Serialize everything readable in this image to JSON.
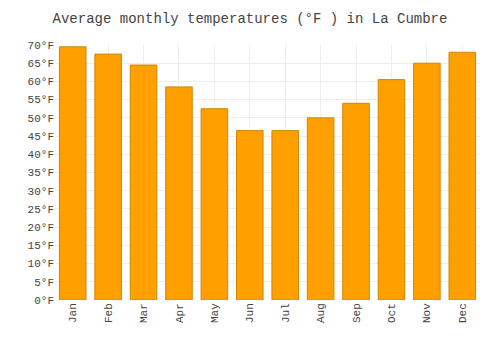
{
  "chart_data": {
    "type": "bar",
    "title": "Average monthly temperatures (°F ) in La Cumbre",
    "categories": [
      "Jan",
      "Feb",
      "Mar",
      "Apr",
      "May",
      "Jun",
      "Jul",
      "Aug",
      "Sep",
      "Oct",
      "Nov",
      "Dec"
    ],
    "values": [
      69.5,
      67.5,
      64.5,
      58.5,
      52.5,
      46.5,
      46.5,
      50.0,
      54.0,
      60.5,
      65.0,
      68.0
    ],
    "color": "#FFA000",
    "ylim": [
      0,
      70
    ],
    "yticks": [
      {
        "value": 0,
        "label": "0°F"
      },
      {
        "value": 5,
        "label": "5°F"
      },
      {
        "value": 10,
        "label": "10°F"
      },
      {
        "value": 15,
        "label": "15°F"
      },
      {
        "value": 20,
        "label": "20°F"
      },
      {
        "value": 25,
        "label": "25°F"
      },
      {
        "value": 30,
        "label": "30°F"
      },
      {
        "value": 35,
        "label": "35°F"
      },
      {
        "value": 40,
        "label": "40°F"
      },
      {
        "value": 45,
        "label": "45°F"
      },
      {
        "value": 50,
        "label": "50°F"
      },
      {
        "value": 55,
        "label": "55°F"
      },
      {
        "value": 60,
        "label": "60°F"
      },
      {
        "value": 65,
        "label": "65°F"
      },
      {
        "value": 70,
        "label": "70°F"
      }
    ],
    "grid": true
  }
}
